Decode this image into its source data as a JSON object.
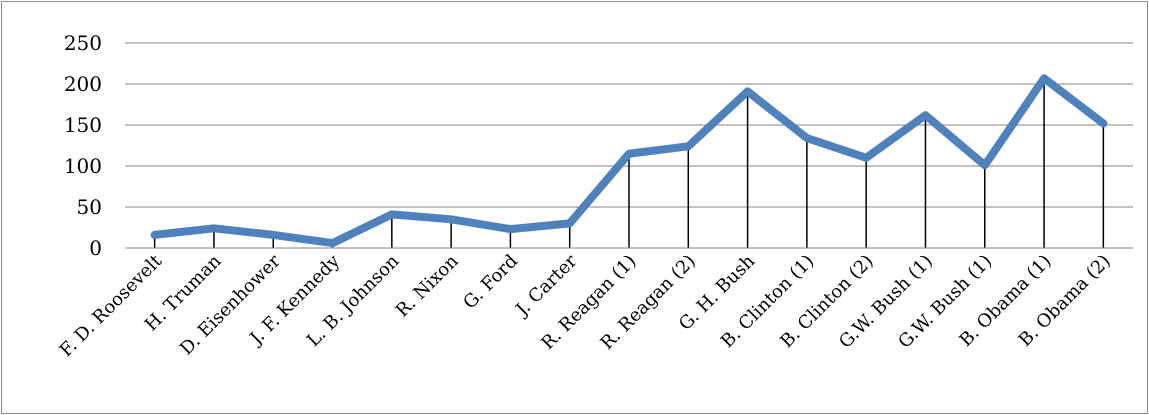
{
  "chart_data": {
    "type": "line",
    "title": "",
    "xlabel": "",
    "ylabel": "",
    "ylim": [
      0,
      250
    ],
    "yticks": [
      0,
      50,
      100,
      150,
      200,
      250
    ],
    "grid": true,
    "drop_lines": true,
    "line_color": "#4f81bd",
    "categories": [
      "F. D. Roosevelt",
      "H. Truman",
      "D. Eisenhower",
      "J. F. Kennedy",
      "L. B. Johnson",
      "R. Nixon",
      "G. Ford",
      "J. Carter",
      "R. Reagan (1)",
      "R. Reagan (2)",
      "G. H. Bush",
      "B. Clinton (1)",
      "B. Clinton (2)",
      "G.W. Bush (1)",
      "G.W. Bush (1)",
      "B. Obama (1)",
      "B. Obama (2)"
    ],
    "series": [
      {
        "values": [
          16,
          24,
          16,
          6,
          41,
          35,
          23,
          30,
          115,
          124,
          191,
          134,
          110,
          162,
          101,
          207,
          152
        ]
      }
    ]
  }
}
